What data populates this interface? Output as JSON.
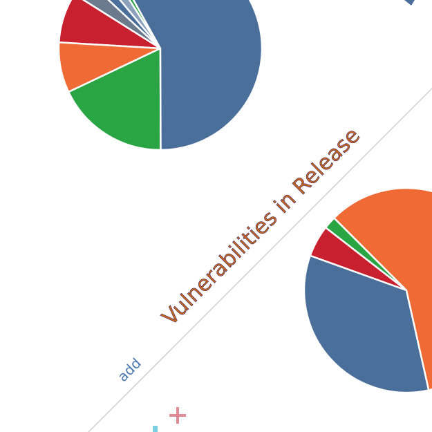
{
  "title": "Vulnerabilities in Release",
  "add_label": "add",
  "pies": [
    {
      "values": [
        58,
        18,
        8,
        8,
        3,
        2,
        2,
        1
      ],
      "colors": [
        "#4a6f9b",
        "#2aa543",
        "#f06a35",
        "#c8202f",
        "#6b7a8c",
        "#4a6f9b",
        "#8aa0bb",
        "#2aa543"
      ]
    },
    {
      "values": [
        59,
        34,
        5,
        2
      ],
      "colors": [
        "#f06a35",
        "#4a6f9b",
        "#c8202f",
        "#2aa543"
      ]
    }
  ]
}
